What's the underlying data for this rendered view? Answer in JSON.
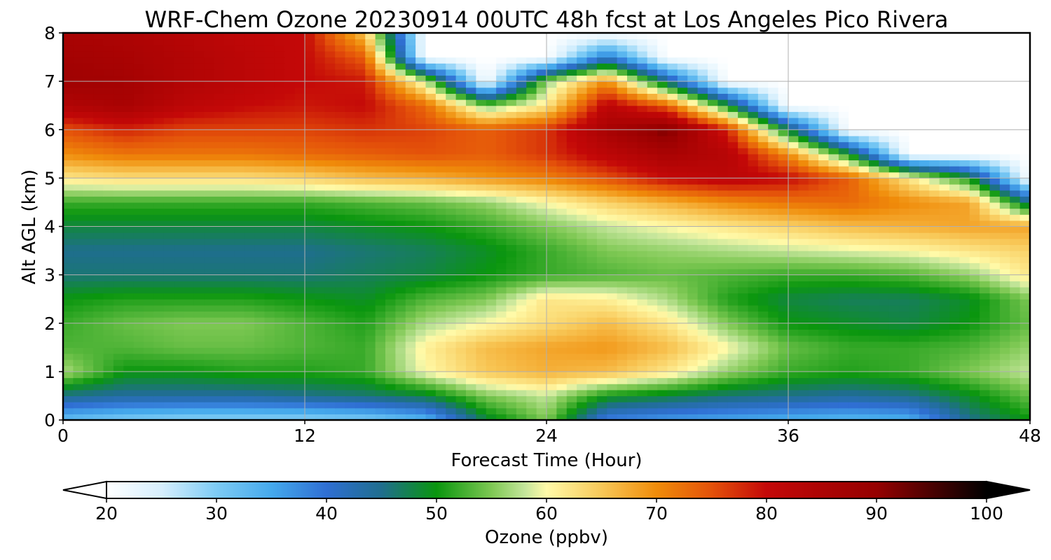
{
  "chart_data": {
    "type": "heatmap",
    "title": "WRF-Chem Ozone  20230914 00UTC 48h fcst at Los Angeles Pico Rivera",
    "xlabel": "Forecast Time (Hour)",
    "ylabel": "Alt AGL (km)",
    "xlim": [
      0,
      48
    ],
    "ylim": [
      0,
      8
    ],
    "x_ticks": [
      "0",
      "12",
      "24",
      "36",
      "48"
    ],
    "y_ticks": [
      "0",
      "1",
      "2",
      "3",
      "4",
      "5",
      "6",
      "7",
      "8"
    ],
    "grid": true,
    "x": [
      0,
      3,
      6,
      9,
      12,
      15,
      18,
      21,
      24,
      27,
      30,
      33,
      36,
      39,
      42,
      45,
      48
    ],
    "y": [
      0,
      0.5,
      1,
      1.5,
      2,
      2.5,
      3,
      3.5,
      4,
      4.5,
      5,
      5.5,
      6,
      6.5,
      7,
      7.5,
      8
    ],
    "z": [
      [
        32,
        30,
        29,
        29,
        29,
        30,
        33,
        48,
        55,
        38,
        36,
        35,
        34,
        33,
        34,
        45,
        50
      ],
      [
        45,
        44,
        44,
        44,
        45,
        46,
        48,
        55,
        58,
        50,
        48,
        46,
        45,
        44,
        45,
        49,
        54
      ],
      [
        57,
        50,
        50,
        51,
        51,
        52,
        60,
        65,
        67,
        66,
        62,
        56,
        52,
        51,
        52,
        55,
        58
      ],
      [
        53,
        53,
        54,
        54,
        53,
        52,
        61,
        66,
        68,
        69,
        66,
        60,
        54,
        52,
        52,
        53,
        56
      ],
      [
        52,
        54,
        55,
        55,
        53,
        51,
        57,
        60,
        63,
        66,
        62,
        55,
        50,
        49,
        48,
        50,
        54
      ],
      [
        50,
        51,
        51,
        51,
        50,
        49,
        53,
        55,
        62,
        61,
        57,
        51,
        48,
        47,
        47,
        49,
        55
      ],
      [
        46,
        46,
        46,
        46,
        46,
        47,
        48,
        50,
        52,
        53,
        54,
        53,
        52,
        52,
        53,
        56,
        62
      ],
      [
        45,
        45,
        45,
        45,
        45,
        46,
        47,
        49,
        52,
        55,
        56,
        57,
        58,
        59,
        60,
        62,
        64
      ],
      [
        48,
        48,
        48,
        48,
        48,
        49,
        50,
        52,
        55,
        58,
        60,
        62,
        64,
        66,
        67,
        68,
        68
      ],
      [
        52,
        52,
        52,
        52,
        52,
        53,
        54,
        56,
        60,
        64,
        67,
        70,
        72,
        73,
        70,
        68,
        45
      ],
      [
        62,
        63,
        63,
        63,
        64,
        66,
        67,
        69,
        71,
        75,
        80,
        82,
        80,
        74,
        62,
        50,
        20
      ],
      [
        70,
        72,
        72,
        72,
        73,
        74,
        75,
        74,
        77,
        82,
        86,
        83,
        70,
        50,
        20,
        20,
        20
      ],
      [
        75,
        78,
        76,
        76,
        76,
        77,
        76,
        74,
        77,
        86,
        92,
        78,
        48,
        20,
        20,
        20,
        20
      ],
      [
        84,
        86,
        82,
        80,
        79,
        80,
        73,
        55,
        62,
        82,
        74,
        50,
        20,
        20,
        20,
        20,
        20
      ],
      [
        88,
        87,
        84,
        82,
        80,
        79,
        58,
        20,
        56,
        70,
        45,
        20,
        20,
        20,
        20,
        20,
        20
      ],
      [
        87,
        86,
        84,
        82,
        80,
        74,
        20,
        20,
        20,
        40,
        20,
        20,
        20,
        20,
        20,
        20,
        20
      ],
      [
        86,
        85,
        83,
        81,
        80,
        65,
        20,
        20,
        20,
        20,
        20,
        20,
        20,
        20,
        20,
        20,
        20
      ]
    ],
    "colorbar": {
      "label": "Ozone  (ppbv)",
      "min": 20,
      "max": 100,
      "ticks": [
        "20",
        "30",
        "40",
        "50",
        "60",
        "70",
        "80",
        "90",
        "100"
      ],
      "extend": "both",
      "colors": [
        {
          "v": 20,
          "c": "#ffffff"
        },
        {
          "v": 25,
          "c": "#d6effd"
        },
        {
          "v": 30,
          "c": "#7dcbf5"
        },
        {
          "v": 35,
          "c": "#45a9ec"
        },
        {
          "v": 40,
          "c": "#2f6fd3"
        },
        {
          "v": 45,
          "c": "#1f6e8e"
        },
        {
          "v": 50,
          "c": "#0a960e"
        },
        {
          "v": 55,
          "c": "#7ec853"
        },
        {
          "v": 58,
          "c": "#c3e59a"
        },
        {
          "v": 60,
          "c": "#fffaa8"
        },
        {
          "v": 65,
          "c": "#f8c858"
        },
        {
          "v": 70,
          "c": "#f08c0a"
        },
        {
          "v": 75,
          "c": "#e4520a"
        },
        {
          "v": 80,
          "c": "#c40808"
        },
        {
          "v": 90,
          "c": "#960000"
        },
        {
          "v": 95,
          "c": "#4a0000"
        },
        {
          "v": 100,
          "c": "#000000"
        }
      ]
    }
  }
}
